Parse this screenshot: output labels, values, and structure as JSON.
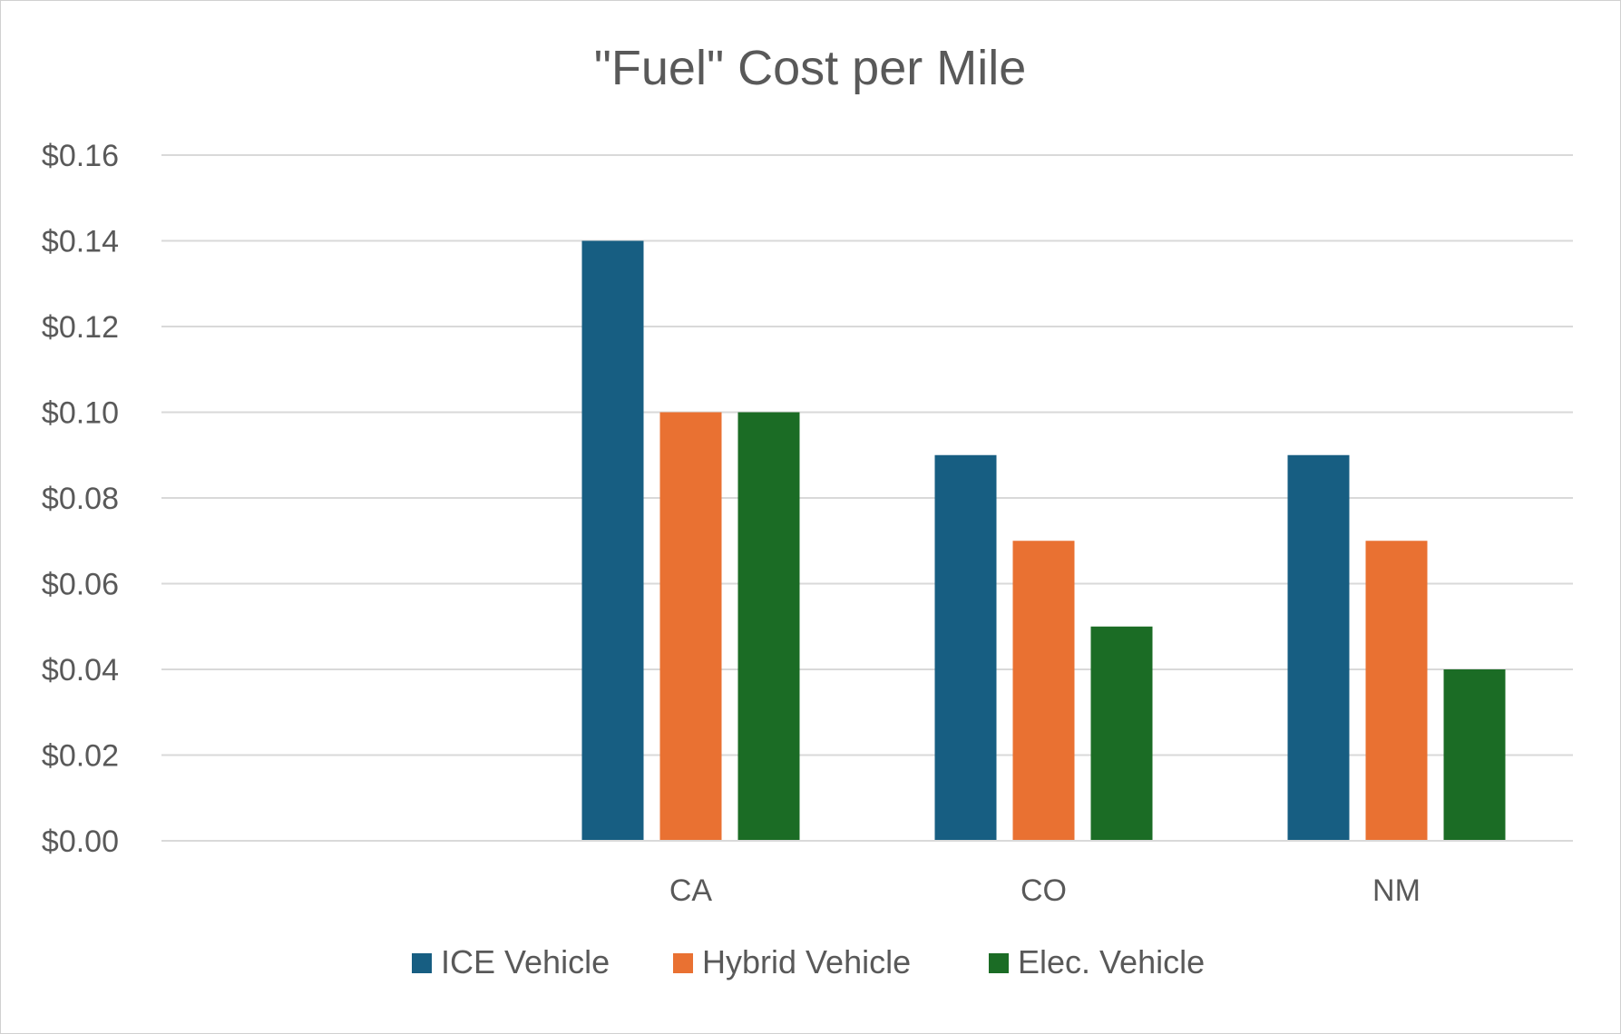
{
  "chart_data": {
    "type": "bar",
    "title": "\"Fuel\" Cost per Mile",
    "categories": [
      "",
      "CA",
      "CO",
      "NM"
    ],
    "series": [
      {
        "name": "ICE Vehicle",
        "color": "#175e82",
        "values": [
          null,
          0.14,
          0.09,
          0.09
        ]
      },
      {
        "name": "Hybrid Vehicle",
        "color": "#e97132",
        "values": [
          null,
          0.1,
          0.07,
          0.07
        ]
      },
      {
        "name": "Elec. Vehicle",
        "color": "#1b6c25",
        "values": [
          null,
          0.1,
          0.05,
          0.04
        ]
      }
    ],
    "ylim": [
      0,
      0.16
    ],
    "yticks": [
      "$0.00",
      "$0.02",
      "$0.04",
      "$0.06",
      "$0.08",
      "$0.10",
      "$0.12",
      "$0.14",
      "$0.16"
    ],
    "ytick_values": [
      0,
      0.02,
      0.04,
      0.06,
      0.08,
      0.1,
      0.12,
      0.14,
      0.16
    ],
    "xlabel": "",
    "ylabel": "",
    "grid": true,
    "legend_position": "bottom",
    "colors": {
      "grid": "#d9d9d9",
      "text": "#595959",
      "axis": "#d9d9d9"
    }
  }
}
